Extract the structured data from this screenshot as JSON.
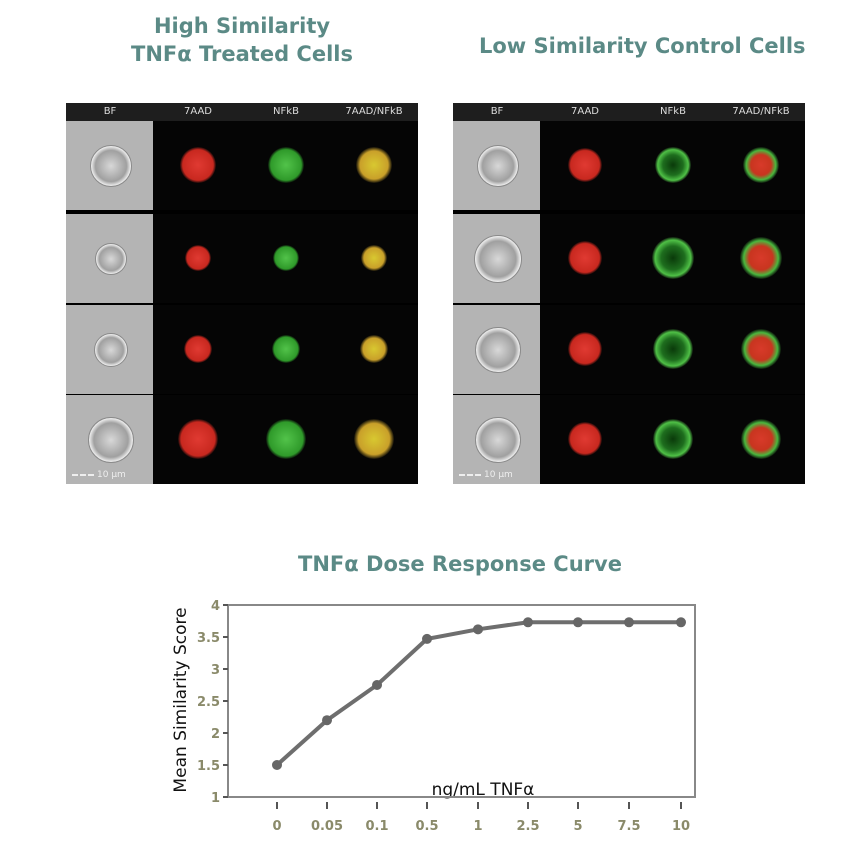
{
  "left_title": [
    "High Similarity",
    "TNFα Treated Cells"
  ],
  "right_title": "Low Similarity Control Cells",
  "channels": [
    "BF",
    "7AAD",
    "NFkB",
    "7AAD/NFkB"
  ],
  "scale_bar": "10 µm",
  "colors": {
    "title": "#5b8a86",
    "line": "#6e6e6e"
  },
  "chart_data": {
    "type": "line",
    "title": "TNFα Dose Response Curve",
    "xlabel": "ng/mL TNFα",
    "ylabel": "Mean Similarity Score",
    "categories": [
      "0",
      "0.05",
      "0.1",
      "0.5",
      "1",
      "2.5",
      "5",
      "7.5",
      "10"
    ],
    "values": [
      1.5,
      2.2,
      2.75,
      3.47,
      3.62,
      3.73,
      3.73,
      3.73,
      3.73
    ],
    "yticks": [
      "1",
      "1.5",
      "2",
      "2.5",
      "3",
      "3.5",
      "4"
    ],
    "ylim": [
      1,
      4
    ],
    "grid": false
  }
}
